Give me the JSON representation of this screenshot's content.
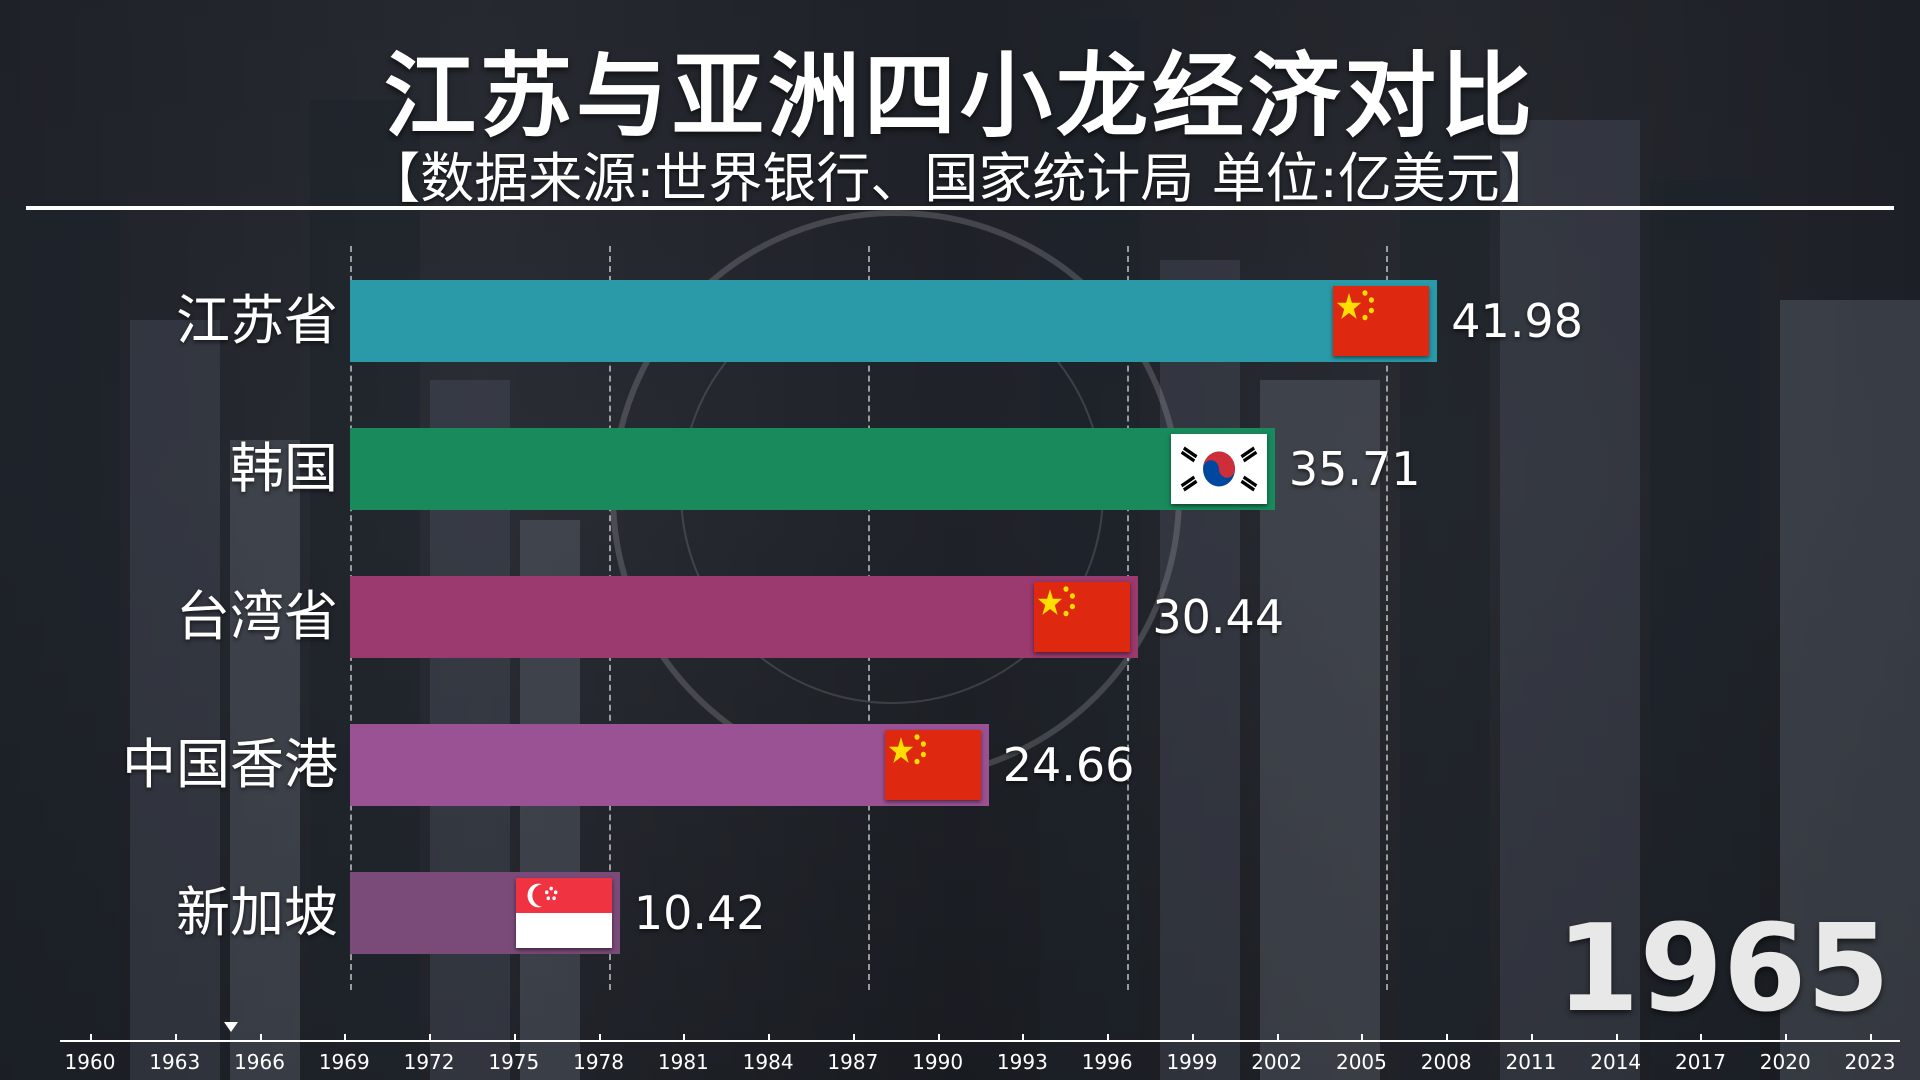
{
  "title": "江苏与亚洲四小龙经济对比",
  "subtitle": "【数据来源:世界银行、国家统计局 单位:亿美元】",
  "current_year": "1965",
  "colors": {
    "jiangsu": "#2a9aa8",
    "korea": "#188a5c",
    "taiwan": "#9a3a6e",
    "hongkong": "#9a5294",
    "singapore": "#7a4a78"
  },
  "chart_data": {
    "type": "bar",
    "orientation": "horizontal",
    "categories": [
      "江苏省",
      "韩国",
      "台湾省",
      "中国香港",
      "新加坡"
    ],
    "values": [
      41.98,
      35.71,
      30.44,
      24.66,
      10.42
    ],
    "value_labels": [
      "41.98",
      "35.71",
      "30.44",
      "24.66",
      "10.42"
    ],
    "flags": [
      "china-flag",
      "south-korea-flag",
      "china-flag",
      "china-flag",
      "singapore-flag"
    ],
    "bar_colors": [
      "#2a9aa8",
      "#188a5c",
      "#9a3a6e",
      "#9a5294",
      "#7a4a78"
    ],
    "xlim": [
      0,
      50
    ],
    "gridlines": [
      0,
      10,
      20,
      30,
      40
    ],
    "grid": true
  },
  "timeline": {
    "ticks": [
      "1960",
      "1963",
      "1966",
      "1969",
      "1972",
      "1975",
      "1978",
      "1981",
      "1984",
      "1987",
      "1990",
      "1993",
      "1996",
      "1999",
      "2002",
      "2005",
      "2008",
      "2011",
      "2014",
      "2017",
      "2020",
      "2023"
    ],
    "start_year": 1960,
    "end_year": 2023,
    "current": 1965
  }
}
